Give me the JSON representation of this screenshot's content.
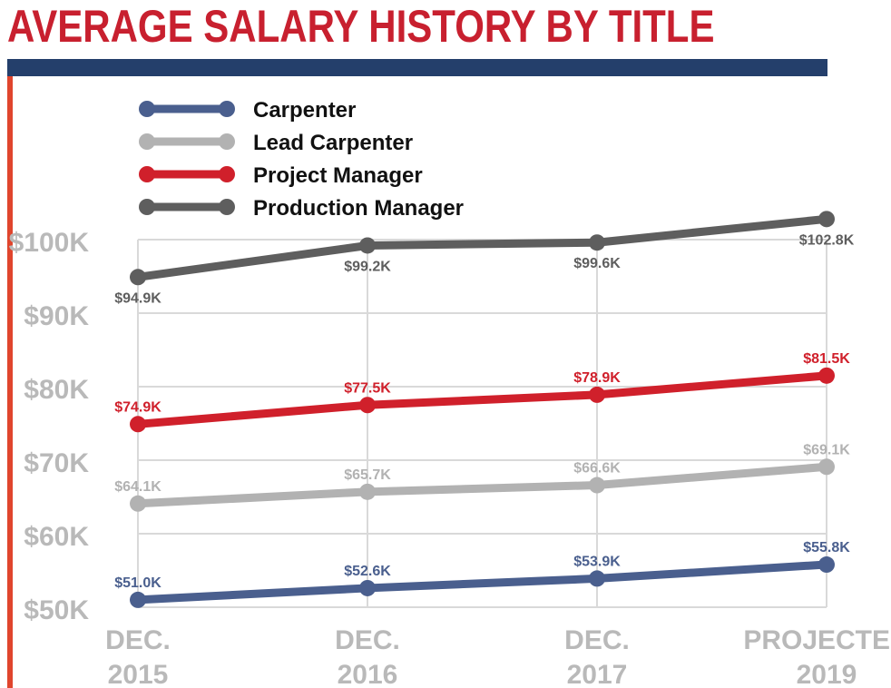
{
  "title": "AVERAGE SALARY HISTORY BY TITLE",
  "colors": {
    "title": "#c8202f",
    "top_rule": "#243f6b",
    "side_rule": "#e0452d",
    "grid": "#d9d9d9",
    "tick_text": "#b9b9b9"
  },
  "chart_data": {
    "type": "line",
    "title": "AVERAGE SALARY HISTORY BY TITLE",
    "categories": [
      [
        "DEC.",
        "2015"
      ],
      [
        "DEC.",
        "2016"
      ],
      [
        "DEC.",
        "2017"
      ],
      [
        "PROJECTED",
        "2019"
      ]
    ],
    "ylim": [
      50,
      100
    ],
    "yticks": [
      100,
      90,
      80,
      70,
      60,
      50
    ],
    "ytick_labels": [
      "$100K",
      "$90K",
      "$80K",
      "$70K",
      "$60K",
      "$50K"
    ],
    "grid": true,
    "legend_position": "top-left",
    "series": [
      {
        "name": "Carpenter",
        "color": "#4a5f8e",
        "values": [
          51.0,
          52.6,
          53.9,
          55.8
        ],
        "labels": [
          "$51.0K",
          "$52.6K",
          "$53.9K",
          "$55.8K"
        ],
        "label_pos": [
          "above",
          "above",
          "above",
          "above"
        ]
      },
      {
        "name": "Lead Carpenter",
        "color": "#b2b2b2",
        "values": [
          64.1,
          65.7,
          66.6,
          69.1
        ],
        "labels": [
          "$64.1K",
          "$65.7K",
          "$66.6K",
          "$69.1K"
        ],
        "label_pos": [
          "above",
          "above",
          "above",
          "above"
        ]
      },
      {
        "name": "Project Manager",
        "color": "#d0202b",
        "values": [
          74.9,
          77.5,
          78.9,
          81.5
        ],
        "labels": [
          "$74.9K",
          "$77.5K",
          "$78.9K",
          "$81.5K"
        ],
        "label_pos": [
          "above",
          "above",
          "above",
          "above"
        ]
      },
      {
        "name": "Production Manager",
        "color": "#5e5e5e",
        "values": [
          94.9,
          99.2,
          99.6,
          102.8
        ],
        "labels": [
          "$94.9K",
          "$99.2K",
          "$99.6K",
          "$102.8K"
        ],
        "label_pos": [
          "below",
          "below",
          "below",
          "below"
        ]
      }
    ]
  }
}
